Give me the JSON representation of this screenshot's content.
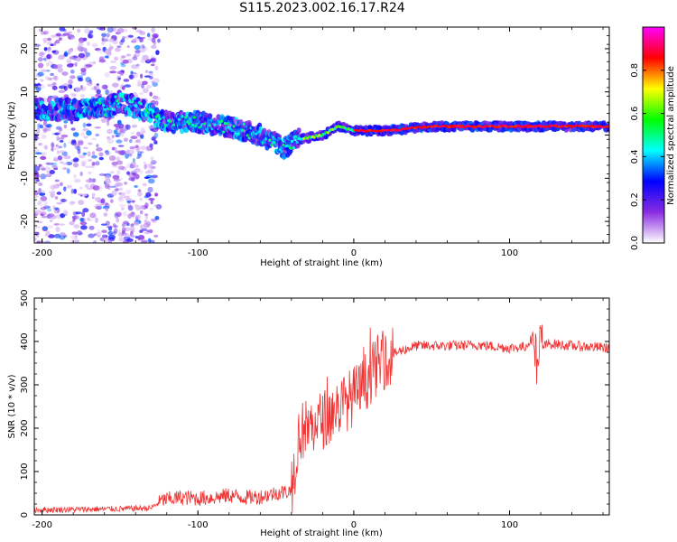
{
  "title": "S115.2023.002.16.17.R24",
  "chart_data": [
    {
      "type": "heatmap",
      "title": "S115.2023.002.16.17.R24",
      "xlabel": "Height of straight line (km)",
      "ylabel": "Frequency (Hz)",
      "xlim": [
        -205,
        164
      ],
      "ylim": [
        -25,
        25
      ],
      "x_ticks": [
        -200,
        -100,
        0,
        100
      ],
      "y_ticks": [
        -20,
        -10,
        0,
        10,
        20
      ],
      "colorbar": {
        "label": "Normalized spectral amplitude",
        "range": [
          0,
          1
        ],
        "ticks": [
          0.0,
          0.2,
          0.4,
          0.6,
          0.8
        ],
        "colors": [
          "#ffffff",
          "#8a2be2",
          "#0000ff",
          "#00ffff",
          "#00ff00",
          "#ffff00",
          "#ff0000",
          "#ff00ff"
        ]
      },
      "ridge": [
        {
          "height": -200,
          "freq": 6
        },
        {
          "height": -180,
          "freq": 6
        },
        {
          "height": -160,
          "freq": 6
        },
        {
          "height": -150,
          "freq": 8
        },
        {
          "height": -130,
          "freq": 5
        },
        {
          "height": -120,
          "freq": 3
        },
        {
          "height": -100,
          "freq": 3
        },
        {
          "height": -80,
          "freq": 2
        },
        {
          "height": -60,
          "freq": 0
        },
        {
          "height": -45,
          "freq": -3
        },
        {
          "height": -35,
          "freq": -1
        },
        {
          "height": -20,
          "freq": 0
        },
        {
          "height": -10,
          "freq": 2
        },
        {
          "height": 0,
          "freq": 1
        },
        {
          "height": 20,
          "freq": 1
        },
        {
          "height": 50,
          "freq": 2
        },
        {
          "height": 80,
          "freq": 2
        },
        {
          "height": 100,
          "freq": 2
        },
        {
          "height": 115,
          "freq": 2
        },
        {
          "height": 164,
          "freq": 2
        }
      ]
    },
    {
      "type": "line",
      "xlabel": "Height of straight line (km)",
      "ylabel": "SNR (10 * v/v)",
      "xlim": [
        -205,
        164
      ],
      "ylim": [
        0,
        500
      ],
      "x_ticks": [
        -200,
        -100,
        0,
        100
      ],
      "y_ticks": [
        0,
        100,
        200,
        300,
        400,
        500
      ],
      "series": [
        {
          "name": "SNR",
          "color": "#ee3333",
          "x": [
            -205,
            -190,
            -170,
            -150,
            -130,
            -122,
            -110,
            -100,
            -90,
            -80,
            -70,
            -60,
            -50,
            -40,
            -35,
            -30,
            -25,
            -20,
            -15,
            -10,
            -5,
            0,
            5,
            10,
            15,
            20,
            25,
            30,
            40,
            60,
            80,
            100,
            110,
            115,
            118,
            120,
            125,
            140,
            164
          ],
          "y": [
            12,
            12,
            13,
            14,
            16,
            35,
            40,
            38,
            40,
            45,
            40,
            42,
            50,
            55,
            190,
            200,
            210,
            220,
            230,
            250,
            260,
            275,
            290,
            320,
            345,
            360,
            370,
            378,
            390,
            390,
            392,
            385,
            388,
            410,
            330,
            385,
            395,
            390,
            385
          ]
        }
      ]
    }
  ]
}
